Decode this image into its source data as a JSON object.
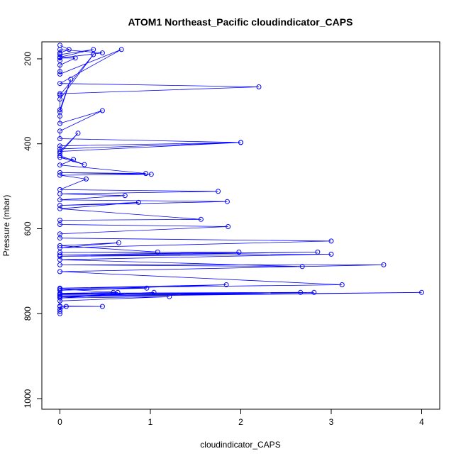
{
  "chart_data": {
    "type": "line",
    "title": "ATOM1 Northeast_Pacific cloudindicator_CAPS",
    "xlabel": "cloudindicator_CAPS",
    "ylabel": "Pressure (mbar)",
    "xlim": [
      -0.2,
      4.2
    ],
    "ylim": [
      1025,
      160
    ],
    "y_reversed": true,
    "xticks": [
      0,
      1,
      2,
      3,
      4
    ],
    "yticks": [
      200,
      400,
      600,
      800,
      1000
    ],
    "series_color": "#0000ff",
    "series": [
      {
        "x": [
          0.0,
          0.1,
          0.0,
          0.0,
          0.37,
          0.0,
          0.0,
          0.0,
          0.47,
          0.0,
          0.17,
          0.0,
          0.0,
          0.0,
          0.68,
          0.0,
          2.2,
          0.0,
          0.0,
          0.37,
          0.0,
          0.0,
          0.12,
          0.0,
          0.0,
          0.0,
          0.47,
          0.0,
          0.0,
          2.0,
          0.0,
          0.0,
          2.0,
          0.0,
          0.2,
          0.0,
          0.0,
          0.27,
          0.0,
          0.15,
          0.0,
          0.95,
          0.0,
          1.01,
          0.0,
          0.29,
          0.0,
          1.75,
          0.0,
          0.72,
          0.0,
          1.85,
          0.0,
          0.87,
          0.0,
          1.56,
          0.0,
          0.0,
          1.86,
          0.0,
          0.0,
          3.0,
          0.0,
          0.65,
          0.0,
          1.08,
          0.0,
          1.98,
          0.0,
          2.85,
          0.0,
          3.0,
          0.0,
          2.68,
          0.0,
          3.58,
          0.0,
          3.12,
          0.0,
          1.84,
          0.0,
          0.96,
          0.0,
          0.64,
          0.0,
          2.66,
          0.0,
          0.59,
          0.0,
          2.81,
          0.0,
          4.0,
          0.0,
          1.04,
          0.0,
          1.21,
          0.0,
          0.0,
          0.47,
          0.0,
          0.07,
          0.0,
          0.0,
          0.0
        ],
        "y": [
          168,
          178,
          186,
          190,
          178,
          196,
          204,
          178,
          186,
          198,
          198,
          215,
          230,
          236,
          178,
          258,
          266,
          282,
          285,
          190,
          295,
          320,
          248,
          325,
          335,
          352,
          322,
          370,
          388,
          397,
          405,
          412,
          397,
          418,
          375,
          422,
          428,
          449,
          432,
          437,
          450,
          470,
          468,
          472,
          474,
          483,
          508,
          512,
          518,
          522,
          532,
          536,
          545,
          538,
          553,
          578,
          580,
          590,
          595,
          612,
          622,
          629,
          645,
          633,
          640,
          655,
          656,
          655,
          662,
          655,
          665,
          660,
          673,
          689,
          685,
          685,
          701,
          732,
          740,
          732,
          745,
          740,
          742,
          750,
          752,
          750,
          754,
          750,
          755,
          750,
          758,
          750,
          760,
          750,
          763,
          760,
          770,
          782,
          783,
          783,
          783,
          790,
          795,
          800
        ]
      }
    ]
  }
}
